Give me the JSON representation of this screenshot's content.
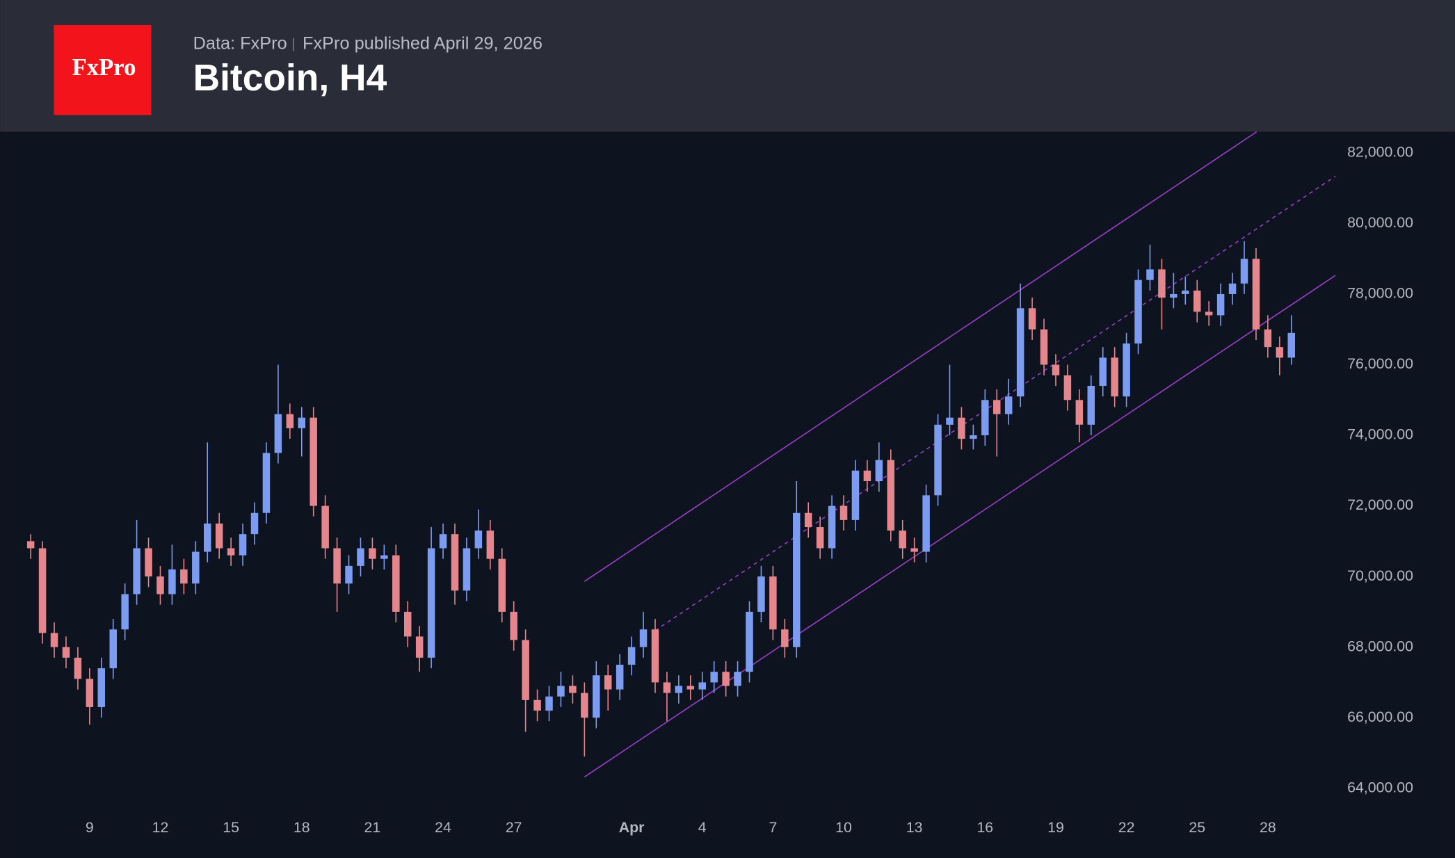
{
  "header": {
    "logo": "FxPro",
    "source": "Data: FxPro",
    "published": "FxPro published April 29, 2026"
  },
  "chart_data": {
    "type": "candlestick",
    "title": "Bitcoin, H4",
    "up_color": "#7b9cf0",
    "down_color": "#e4868c",
    "xlim": [
      5.2,
      61.9
    ],
    "xticks": [
      9,
      12,
      15,
      18,
      21,
      24,
      27,
      {
        "value": 32,
        "label": "Apr"
      },
      {
        "value": 35,
        "label": "4"
      },
      {
        "value": 38,
        "label": "7"
      },
      {
        "value": 41,
        "label": "10"
      },
      {
        "value": 44,
        "label": "13"
      },
      {
        "value": 47,
        "label": "16"
      },
      {
        "value": 50,
        "label": "19"
      },
      {
        "value": 53,
        "label": "22"
      },
      {
        "value": 56,
        "label": "25"
      },
      {
        "value": 59,
        "label": "28"
      }
    ],
    "ylim": [
      63470,
      82600
    ],
    "yticks": [
      {
        "value": 82000,
        "label": "82,000.00"
      },
      {
        "value": 80000,
        "label": "80,000.00"
      },
      {
        "value": 78000,
        "label": "78,000.00"
      },
      {
        "value": 76000,
        "label": "76,000.00"
      },
      {
        "value": 74000,
        "label": "74,000.00"
      },
      {
        "value": 72000,
        "label": "72,000.00"
      },
      {
        "value": 70000,
        "label": "70,000.00"
      },
      {
        "value": 68000,
        "label": "68,000.00"
      },
      {
        "value": 66000,
        "label": "66,000.00"
      },
      {
        "value": 64000,
        "label": "64,000.00"
      }
    ],
    "x": [
      6.5,
      7,
      7.5,
      8,
      8.5,
      9,
      9.5,
      10,
      10.5,
      11,
      11.5,
      12,
      12.5,
      13,
      13.5,
      14,
      14.5,
      15,
      15.5,
      16,
      16.5,
      17,
      17.5,
      18,
      18.5,
      19,
      19.5,
      20,
      20.5,
      21,
      21.5,
      22,
      22.5,
      23,
      23.5,
      24,
      24.5,
      25,
      25.5,
      26,
      26.5,
      27,
      27.5,
      28,
      28.5,
      29,
      29.5,
      30,
      30.5,
      31,
      31.5,
      32,
      32.5,
      33,
      33.5,
      34,
      34.5,
      35,
      35.5,
      36,
      36.5,
      37,
      37.5,
      38,
      38.5,
      39,
      39.5,
      40,
      40.5,
      41,
      41.5,
      42,
      42.5,
      43,
      43.5,
      44,
      44.5,
      45,
      45.5,
      46,
      46.5,
      47,
      47.5,
      48,
      48.5,
      49,
      49.5,
      50,
      50.5,
      51,
      51.5,
      52,
      52.5,
      53,
      53.5,
      54,
      54.5,
      55,
      55.5,
      56,
      56.5,
      57,
      57.5,
      58,
      58.5,
      59,
      59.5,
      60
    ],
    "open": [
      71000,
      70800,
      68400,
      68000,
      67700,
      67100,
      66300,
      67400,
      68500,
      69500,
      70800,
      70000,
      69500,
      70200,
      69800,
      70700,
      71500,
      70800,
      70600,
      71200,
      71800,
      73500,
      74600,
      74200,
      74500,
      72000,
      70800,
      69800,
      70300,
      70800,
      70500,
      70600,
      69000,
      68300,
      67700,
      70800,
      71200,
      69600,
      70800,
      71300,
      70500,
      69000,
      68200,
      66500,
      66200,
      66600,
      66900,
      66700,
      66000,
      67200,
      66800,
      67500,
      68000,
      68500,
      67000,
      66700,
      66900,
      66800,
      67000,
      67300,
      66900,
      67300,
      69000,
      70000,
      68500,
      68000,
      71800,
      71400,
      70800,
      72000,
      71600,
      73000,
      72700,
      73300,
      71300,
      70800,
      70700,
      72300,
      74300,
      74500,
      73900,
      74000,
      75000,
      74600,
      75100,
      77600,
      77000,
      76000,
      75700,
      75000,
      74300,
      75400,
      76200,
      75100,
      76600,
      78400,
      78700,
      77900,
      78000,
      78100,
      77500,
      77400,
      78000,
      78300,
      79000,
      77000,
      76500,
      76200
    ],
    "high": [
      71200,
      71000,
      68700,
      68300,
      68000,
      67400,
      67700,
      68800,
      69800,
      71600,
      71100,
      70300,
      70900,
      70500,
      71000,
      73800,
      71800,
      71100,
      71500,
      72100,
      73800,
      76000,
      74900,
      74800,
      74800,
      72300,
      71100,
      70600,
      71100,
      71100,
      70900,
      70900,
      69300,
      68600,
      71400,
      71500,
      71500,
      71100,
      71900,
      71600,
      70800,
      69300,
      68500,
      66800,
      66900,
      67300,
      67200,
      67000,
      67600,
      67500,
      67800,
      68300,
      69000,
      68800,
      67300,
      67200,
      67200,
      67300,
      67600,
      67600,
      67600,
      69300,
      70300,
      70300,
      68800,
      72700,
      72100,
      71700,
      72300,
      72300,
      73300,
      73300,
      73800,
      73600,
      71600,
      71100,
      72600,
      74600,
      76000,
      74800,
      74300,
      75300,
      75300,
      75600,
      78300,
      77900,
      77300,
      76300,
      76000,
      75300,
      75700,
      76500,
      76500,
      76900,
      78700,
      79400,
      79000,
      78600,
      78500,
      78400,
      77800,
      78300,
      78600,
      79500,
      79300,
      77400,
      76800,
      77400
    ],
    "low": [
      70500,
      68100,
      67700,
      67400,
      66800,
      65800,
      66000,
      67100,
      68200,
      69200,
      69700,
      69200,
      69200,
      69500,
      69500,
      70400,
      70500,
      70300,
      70300,
      70900,
      71500,
      73200,
      73900,
      73400,
      71700,
      70500,
      69000,
      69500,
      70000,
      70200,
      70200,
      68700,
      68000,
      67300,
      67400,
      70500,
      69200,
      69300,
      70500,
      70200,
      68700,
      67900,
      65600,
      65900,
      65900,
      66300,
      66400,
      64900,
      65700,
      66200,
      66500,
      67200,
      67700,
      66700,
      65900,
      66400,
      66500,
      66500,
      66700,
      66600,
      66600,
      67000,
      68700,
      68200,
      67700,
      67700,
      71100,
      70500,
      70500,
      71300,
      71300,
      72400,
      72400,
      71000,
      70500,
      70400,
      70400,
      72000,
      74000,
      73600,
      73600,
      73700,
      73400,
      74300,
      74800,
      76700,
      75700,
      75400,
      74700,
      73800,
      74000,
      75100,
      74800,
      74800,
      76300,
      78100,
      77000,
      77600,
      77700,
      77200,
      77100,
      77100,
      77700,
      78000,
      76700,
      76200,
      75700,
      76000
    ],
    "close": [
      70800,
      68400,
      68000,
      67700,
      67100,
      66300,
      67400,
      68500,
      69500,
      70800,
      70000,
      69500,
      70200,
      69800,
      70700,
      71500,
      70800,
      70600,
      71200,
      71800,
      73500,
      74600,
      74200,
      74500,
      72000,
      70800,
      69800,
      70300,
      70800,
      70500,
      70600,
      69000,
      68300,
      67700,
      70800,
      71200,
      69600,
      70800,
      71300,
      70500,
      69000,
      68200,
      66500,
      66200,
      66600,
      66900,
      66700,
      66000,
      67200,
      66800,
      67500,
      68000,
      68500,
      67000,
      66700,
      66900,
      66800,
      67000,
      67300,
      66900,
      67300,
      69000,
      70000,
      68500,
      68000,
      71800,
      71400,
      70800,
      72000,
      71600,
      73000,
      72700,
      73300,
      71300,
      70800,
      70700,
      72300,
      74300,
      74500,
      73900,
      74000,
      75000,
      74600,
      75100,
      77600,
      77000,
      76000,
      75700,
      75000,
      74300,
      75400,
      76200,
      75100,
      76600,
      78400,
      78700,
      77900,
      78000,
      78100,
      77500,
      77400,
      78000,
      78300,
      79000,
      77000,
      76500,
      76200,
      76900
    ],
    "channel_color": "#9b3fc8",
    "channel_lines": [
      {
        "x": [
          30.0,
          58.53
        ],
        "y": [
          69860,
          82600
        ],
        "dashed": false
      },
      {
        "x": [
          33.0,
          61.87
        ],
        "y": [
          68470,
          81340
        ],
        "dashed": true
      },
      {
        "x": [
          30.0,
          61.87
        ],
        "y": [
          64320,
          78530
        ],
        "dashed": false
      }
    ]
  }
}
